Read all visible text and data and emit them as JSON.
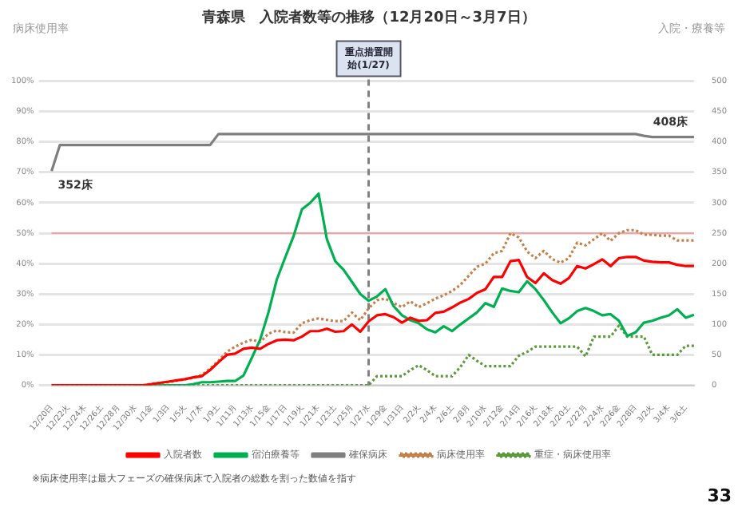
{
  "chart_data": {
    "type": "line",
    "title": "青森県　入院者数等の推移（12月20日～3月7日）",
    "ylabel": "病床使用率",
    "y2label": "入院・療養等",
    "categories": [
      "12/20日",
      null,
      "12/22火",
      null,
      "12/24木",
      null,
      "12/26土",
      null,
      "12/28月",
      null,
      "12/30水",
      null,
      "1/1金",
      null,
      "1/3日",
      null,
      "1/5火",
      null,
      "1/7木",
      null,
      "1/9土",
      null,
      "1/11月",
      null,
      "1/13水",
      null,
      "1/15金",
      null,
      "1/17日",
      null,
      "1/19火",
      null,
      "1/21木",
      null,
      "1/23土",
      null,
      "1/25月",
      null,
      "1/27水",
      null,
      "1/29金",
      null,
      "1/31日",
      null,
      "2/2火",
      null,
      "2/4木",
      null,
      "2/6土",
      null,
      "2/8月",
      null,
      "2/10水",
      null,
      "2/12金",
      null,
      "2/14日",
      null,
      "2/16火",
      null,
      "2/18木",
      null,
      "2/20土",
      null,
      "2/22月",
      null,
      "2/24水",
      null,
      "2/26金",
      null,
      "2/28日",
      null,
      "3/2火",
      null,
      "3/4木",
      null,
      "3/6土",
      null
    ],
    "series": [
      {
        "name": "入院者数",
        "color": "#ff0000",
        "axis": "y2",
        "line_style": "solid",
        "values": [
          0,
          0,
          0,
          0,
          0,
          0,
          0,
          0,
          0,
          0,
          0,
          0,
          2,
          4,
          6,
          8,
          10,
          13,
          15,
          25,
          38,
          50,
          52,
          60,
          62,
          60,
          68,
          74,
          75,
          74,
          80,
          89,
          89,
          93,
          88,
          89,
          100,
          88,
          105,
          115,
          117,
          112,
          103,
          111,
          106,
          107,
          119,
          121,
          128,
          136,
          142,
          152,
          158,
          178,
          178,
          204,
          206,
          178,
          168,
          184,
          173,
          167,
          176,
          196,
          192,
          199,
          207,
          196,
          209,
          211,
          211,
          205,
          203,
          202,
          202,
          198,
          196,
          196
        ]
      },
      {
        "name": "宿泊療養等",
        "color": "#00b050",
        "axis": "y2",
        "line_style": "solid",
        "values": [
          null,
          null,
          null,
          null,
          null,
          null,
          null,
          null,
          null,
          null,
          null,
          0,
          0,
          0,
          0,
          0,
          0,
          2,
          5,
          5,
          6,
          7,
          7,
          16,
          45,
          75,
          120,
          174,
          210,
          245,
          289,
          300,
          315,
          240,
          204,
          190,
          170,
          150,
          139,
          146,
          158,
          130,
          115,
          107,
          102,
          92,
          87,
          97,
          89,
          100,
          110,
          120,
          135,
          129,
          159,
          155,
          153,
          171,
          158,
          140,
          120,
          102,
          110,
          122,
          127,
          122,
          115,
          117,
          106,
          81,
          87,
          103,
          106,
          111,
          115,
          125,
          111,
          116
        ]
      },
      {
        "name": "確保病床",
        "color": "#7f7f7f",
        "axis": "y2",
        "line_style": "solid",
        "values": [
          352,
          395,
          395,
          395,
          395,
          395,
          395,
          395,
          395,
          395,
          395,
          395,
          395,
          395,
          395,
          395,
          395,
          395,
          395,
          395,
          413,
          413,
          413,
          413,
          413,
          413,
          413,
          413,
          413,
          413,
          413,
          413,
          413,
          413,
          413,
          413,
          413,
          413,
          413,
          413,
          413,
          413,
          413,
          413,
          413,
          413,
          413,
          413,
          413,
          413,
          413,
          413,
          413,
          413,
          413,
          413,
          413,
          413,
          413,
          413,
          413,
          413,
          413,
          413,
          413,
          413,
          413,
          413,
          413,
          413,
          413,
          410,
          408,
          408,
          408,
          408,
          408,
          408
        ]
      },
      {
        "name": "病床使用率",
        "color": "#c5804a",
        "line_style": "dotted",
        "values": [
          0,
          0,
          0,
          0,
          0,
          0,
          0,
          0,
          0,
          0,
          0,
          0,
          0.5,
          0.8,
          1,
          1.5,
          2,
          2.5,
          3.4,
          5.5,
          8,
          11,
          12.7,
          14,
          15,
          14.2,
          17,
          18,
          17.5,
          17.3,
          20.4,
          21.4,
          22,
          21.5,
          21.1,
          21.1,
          23.9,
          21.4,
          25.3,
          28,
          28.5,
          27,
          25.7,
          27.6,
          25.7,
          27,
          28.5,
          29.6,
          31,
          33,
          36,
          39,
          40,
          43.4,
          44.2,
          50,
          48.6,
          44,
          41.8,
          44.2,
          41.5,
          40.3,
          41.8,
          46.9,
          46,
          48,
          50,
          47.5,
          50,
          51,
          51,
          49.5,
          49.5,
          49.2,
          49.2,
          47.6,
          47.6,
          47.6
        ]
      },
      {
        "name": "重症・病床使用率",
        "color": "#5a9a3a",
        "line_style": "dotted",
        "values": [
          null,
          null,
          null,
          null,
          null,
          null,
          null,
          null,
          null,
          null,
          0,
          0,
          0,
          0,
          0,
          0,
          0,
          0,
          0,
          0,
          0,
          0,
          0,
          0,
          0,
          0,
          0,
          0,
          0,
          0,
          0,
          0,
          0,
          0,
          0,
          0,
          0,
          0,
          0,
          3,
          3,
          3,
          3,
          5,
          6.6,
          5,
          3,
          3,
          3,
          6,
          10,
          8,
          6.3,
          6.3,
          6.3,
          6.3,
          9.7,
          11,
          12.7,
          12.7,
          12.7,
          12.7,
          12.7,
          12.7,
          9.5,
          16,
          16,
          16,
          19.6,
          16,
          16,
          16,
          10,
          10,
          10,
          10,
          13,
          13
        ]
      }
    ],
    "ylim": [
      0,
      100
    ],
    "yticks": [
      {
        "value": 0,
        "label": "0%"
      },
      {
        "value": 10,
        "label": "10%"
      },
      {
        "value": 20,
        "label": "20%"
      },
      {
        "value": 30,
        "label": "30%"
      },
      {
        "value": 40,
        "label": "40%"
      },
      {
        "value": 50,
        "label": "50%"
      },
      {
        "value": 60,
        "label": "60%"
      },
      {
        "value": 70,
        "label": "70%"
      },
      {
        "value": 80,
        "label": "80%"
      },
      {
        "value": 90,
        "label": "90%"
      },
      {
        "value": 100,
        "label": "100%"
      }
    ],
    "y2lim": [
      0,
      500
    ],
    "y2ticks": [
      0,
      50,
      100,
      150,
      200,
      250,
      300,
      350,
      400,
      450,
      500
    ],
    "ref_lines": [
      {
        "axis": "y",
        "value": 50,
        "color": "#f4a0a0",
        "line_style": "solid"
      },
      {
        "axis": "x",
        "value": "1/27水",
        "label": "重点措置開始(1/27)",
        "color": "#808080",
        "line_style": "dashed"
      }
    ],
    "annotations": [
      "352床",
      "408床",
      "※病床使用率は最大フェーズの確保病床で入院者の総数を割った数値を指す",
      "33"
    ],
    "grid": "y",
    "legend": "bottom",
    "marker": "none"
  }
}
